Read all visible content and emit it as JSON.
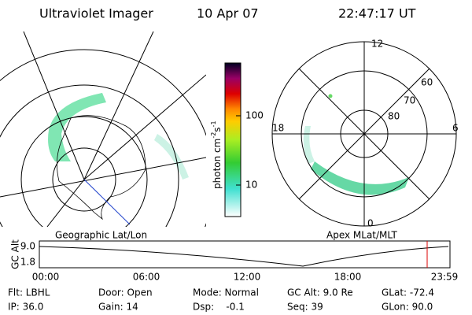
{
  "header": {
    "title": "Ultraviolet Imager",
    "date": "10 Apr 07",
    "time": "22:47:17 UT"
  },
  "colorbar": {
    "label": {
      "text": "photon cm",
      "sup1": "-2",
      "mid": "s",
      "sup2": "-1"
    },
    "ticks": [
      "100",
      "10"
    ]
  },
  "left_map": {
    "caption": "Geographic Lat/Lon"
  },
  "right_map": {
    "caption": "Apex MLat/MLT",
    "mlt_labels": {
      "top": "12",
      "left": "18",
      "right": "6",
      "bottom": "0"
    },
    "lat_labels": [
      "60",
      "70",
      "80"
    ]
  },
  "altitude_plot": {
    "ylabel": "GC Alt",
    "yticks": [
      "9.0",
      "1.8"
    ],
    "xticks": [
      "00:00",
      "06:00",
      "12:00",
      "18:00",
      "23:59"
    ]
  },
  "footer": {
    "rows": [
      [
        "Flt: LBHL",
        "Door: Open",
        "Mode: Normal",
        "GC Alt: 9.0 Re",
        "GLat: -72.4"
      ],
      [
        "IP: 36.0",
        "Gain: 14",
        "Dsp:    -0.1",
        "Seq: 39",
        "GLon: 90.0"
      ]
    ]
  }
}
